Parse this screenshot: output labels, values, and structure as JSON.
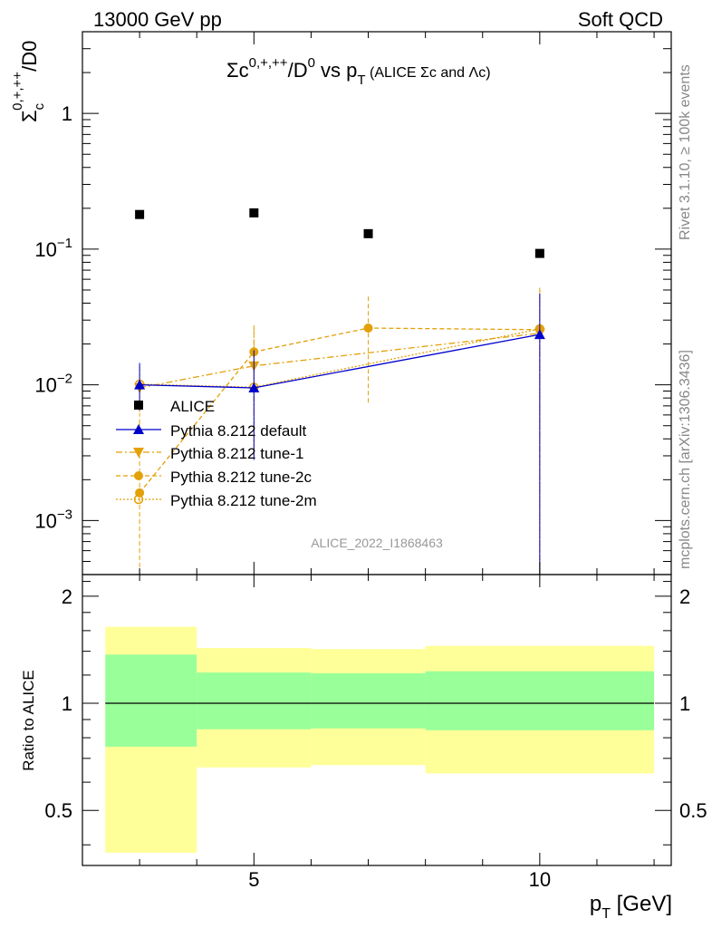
{
  "header": {
    "left": "13000 GeV pp",
    "right": "Soft QCD"
  },
  "side_labels": {
    "rivet": "Rivet 3.1.10, ≥ 100k events",
    "mcplots": "mcplots.cern.ch [arXiv:1306.3436]"
  },
  "watermark": "ALICE_2022_I1868463",
  "colors": {
    "data": "#000000",
    "default": "#0000cc",
    "tune": "#e3a008",
    "band_inner": "#99ff99",
    "band_outer": "#ffff99"
  },
  "chart_data": [
    {
      "type": "scatter",
      "title": "Σc⁰ʸ⁺ʸ⁺⁺/D⁰ vs p_T (ALICE Σc and Λc)",
      "title_main": "Σc",
      "title_sup1": "0,+,++",
      "title_mid": "/D",
      "title_sup2": "0",
      "title_vs": " vs p",
      "title_sub": "T",
      "title_small": " (ALICE Σc and Λc)",
      "ylabel_base": "Σ",
      "ylabel_sub": "c",
      "ylabel_sup": "0,+,++",
      "ylabel_tail": "/D0",
      "yscale": "log",
      "xlim": [
        2,
        12.3
      ],
      "ylim": [
        0.0004,
        4.0
      ],
      "yticks": [
        {
          "v": 1,
          "base": "1",
          "exp": ""
        },
        {
          "v": 0.1,
          "base": "10",
          "exp": "−1"
        },
        {
          "v": 0.01,
          "base": "10",
          "exp": "−2"
        },
        {
          "v": 0.001,
          "base": "10",
          "exp": "−3"
        }
      ],
      "legend_position": "middle-left",
      "series": [
        {
          "name": "ALICE",
          "style": "square",
          "points": [
            {
              "x": 3,
              "y": 0.18
            },
            {
              "x": 5,
              "y": 0.185
            },
            {
              "x": 7,
              "y": 0.13
            },
            {
              "x": 10,
              "y": 0.093
            }
          ]
        },
        {
          "name": "Pythia 8.212 default",
          "style": "triangle-up",
          "points": [
            {
              "x": 3,
              "y": 0.01,
              "lo": 0.0065,
              "hi": 0.0145
            },
            {
              "x": 5,
              "y": 0.0095,
              "lo": 0.0028,
              "hi": 0.018
            },
            {
              "x": 10,
              "y": 0.0235,
              "lo": 0.0004,
              "hi": 0.047
            }
          ]
        },
        {
          "name": "Pythia 8.212 tune-1",
          "style": "triangle-down",
          "points": [
            {
              "x": 3,
              "y": 0.0095,
              "lo": 0.005,
              "hi": 0.0135
            },
            {
              "x": 5,
              "y": 0.0138,
              "lo": 0.003,
              "hi": 0.026
            },
            {
              "x": 10,
              "y": 0.024,
              "lo": 0.0004,
              "hi": 0.05
            }
          ]
        },
        {
          "name": "Pythia 8.212 tune-2c",
          "style": "circle",
          "points": [
            {
              "x": 3,
              "y": 0.0016,
              "lo": 0.0004,
              "hi": 0.0034
            },
            {
              "x": 5,
              "y": 0.0175,
              "lo": 0.0075,
              "hi": 0.0275
            },
            {
              "x": 7,
              "y": 0.0262,
              "lo": 0.0074,
              "hi": 0.045
            },
            {
              "x": 10,
              "y": 0.0255,
              "lo": 0.0004,
              "hi": 0.052
            }
          ]
        },
        {
          "name": "Pythia 8.212 tune-2m",
          "style": "open-circle",
          "points": [
            {
              "x": 3,
              "y": 0.0101,
              "lo": 0.006,
              "hi": 0.0142
            },
            {
              "x": 5,
              "y": 0.0096,
              "lo": 0.003,
              "hi": 0.017
            },
            {
              "x": 10,
              "y": 0.0258,
              "lo": 0.0004,
              "hi": 0.05
            }
          ]
        }
      ]
    },
    {
      "type": "area",
      "ylabel": "Ratio to ALICE",
      "xlabel_base": "p",
      "xlabel_sub": "T",
      "xlabel_unit": " [GeV]",
      "xlim": [
        2,
        12.3
      ],
      "ylim": [
        0.35,
        2.3
      ],
      "xticks": [
        5,
        10
      ],
      "yticks": [
        0.5,
        1,
        2
      ],
      "reference": 1,
      "bins": [
        {
          "x0": 2.4,
          "x1": 4.0,
          "in_lo": 0.755,
          "in_hi": 1.37,
          "out_lo": 0.38,
          "out_hi": 1.64
        },
        {
          "x0": 4.0,
          "x1": 6.0,
          "in_lo": 0.845,
          "in_hi": 1.22,
          "out_lo": 0.66,
          "out_hi": 1.43
        },
        {
          "x0": 6.0,
          "x1": 8.0,
          "in_lo": 0.85,
          "in_hi": 1.215,
          "out_lo": 0.67,
          "out_hi": 1.42
        },
        {
          "x0": 8.0,
          "x1": 12.0,
          "in_lo": 0.84,
          "in_hi": 1.23,
          "out_lo": 0.635,
          "out_hi": 1.45
        }
      ]
    }
  ]
}
